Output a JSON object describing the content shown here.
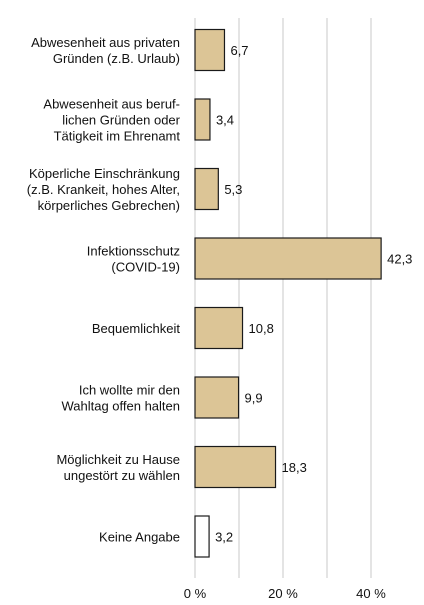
{
  "chart_data": {
    "type": "bar",
    "orientation": "horizontal",
    "categories": [
      [
        "Abwesenheit aus privaten",
        "Gründen (z.B. Urlaub)"
      ],
      [
        "Abwesenheit aus beruf-",
        "lichen Gründen oder",
        "Tätigkeit im Ehrenamt"
      ],
      [
        "Köperliche Einschränkung",
        "(z.B. Krankeit, hohes Alter,",
        "körperliches Gebrechen)"
      ],
      [
        "Infektionsschutz",
        "(COVID-19)"
      ],
      [
        "Bequemlichkeit"
      ],
      [
        "Ich wollte mir den",
        "Wahltag offen halten"
      ],
      [
        "Möglichkeit zu Hause",
        "ungestört zu wählen"
      ],
      [
        "Keine Angabe"
      ]
    ],
    "values": [
      6.7,
      3.4,
      5.3,
      42.3,
      10.8,
      9.9,
      18.3,
      3.2
    ],
    "value_labels": [
      "6,7",
      "3,4",
      "5,3",
      "42,3",
      "10,8",
      "9,9",
      "18,3",
      "3,2"
    ],
    "bar_colors": [
      "#dcc596",
      "#dcc596",
      "#dcc596",
      "#dcc596",
      "#dcc596",
      "#dcc596",
      "#dcc596",
      "#ffffff"
    ],
    "bar_stroke": "#1a1a1a",
    "grid_color": "#c8c8c8",
    "xlim": [
      0,
      48
    ],
    "xticks": [
      0,
      20,
      40
    ],
    "xtick_labels": [
      "0 %",
      "20 %",
      "40 %"
    ],
    "grid": true,
    "title": "",
    "xlabel": "",
    "ylabel": ""
  }
}
